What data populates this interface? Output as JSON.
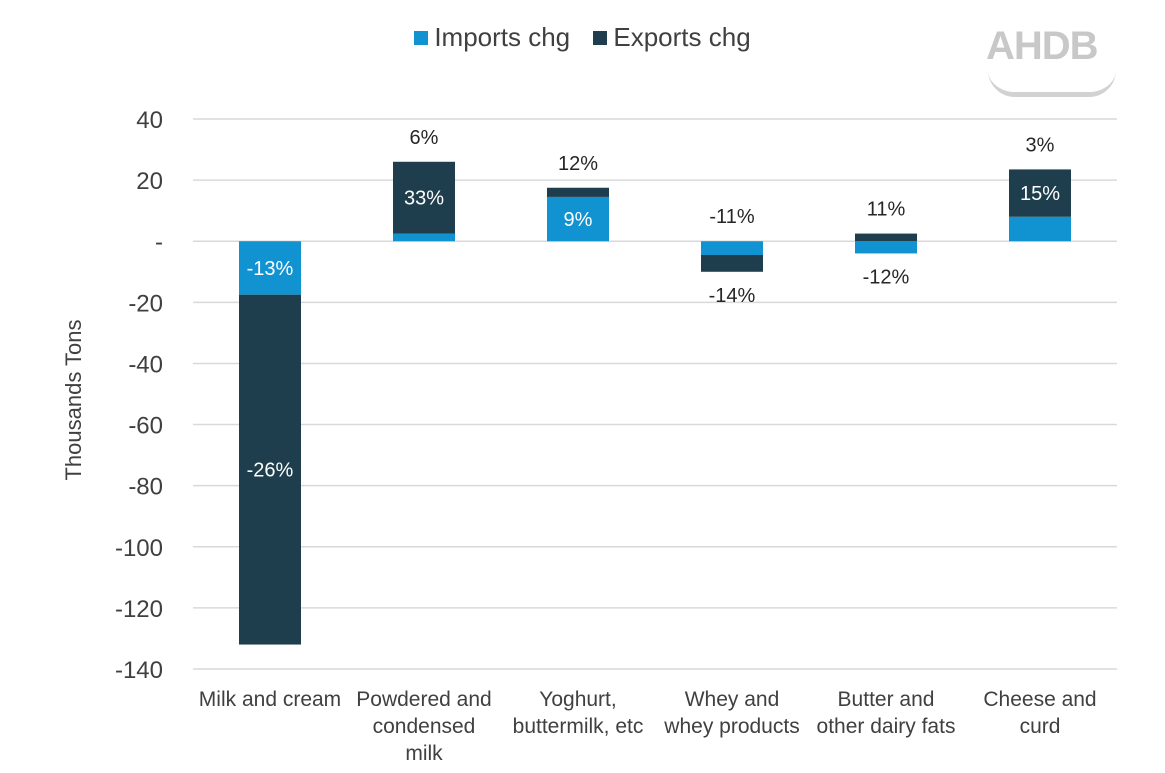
{
  "legend": {
    "imports_label": "Imports chg",
    "exports_label": "Exports chg"
  },
  "logo": {
    "text": "AHDB"
  },
  "colors": {
    "imports": "#1193d1",
    "exports": "#1f3e4d",
    "grid": "#d9d9d9",
    "text": "#404040"
  },
  "chart_data": {
    "type": "bar",
    "stacked": true,
    "ylabel": "Thousands Tons",
    "ylim": [
      -140,
      40
    ],
    "yticks": [
      40,
      20,
      0,
      -20,
      -40,
      -60,
      -80,
      -100,
      -120,
      -140
    ],
    "ytick_labels": [
      "40",
      "20",
      "-",
      "-20",
      "-40",
      "-60",
      "-80",
      "-100",
      "-120",
      "-140"
    ],
    "grid": true,
    "legend_position": "top",
    "categories": [
      [
        "Milk and cream"
      ],
      [
        "Powdered and",
        "condensed",
        "milk"
      ],
      [
        "Yoghurt,",
        "buttermilk, etc"
      ],
      [
        "Whey and",
        "whey products"
      ],
      [
        "Butter and",
        "other dairy fats"
      ],
      [
        "Cheese and",
        "curd"
      ]
    ],
    "series": [
      {
        "name": "Imports chg",
        "values": [
          -17.5,
          2.5,
          14.5,
          -4.5,
          -4,
          8
        ],
        "labels": [
          "-13%",
          "6%",
          "9%",
          "-11%",
          "-12%",
          "3%"
        ]
      },
      {
        "name": "Exports chg",
        "values": [
          -114.5,
          23.5,
          3,
          -5.5,
          2.5,
          15.5
        ],
        "labels": [
          "-26%",
          "33%",
          "12%",
          "-14%",
          "11%",
          "15%"
        ]
      }
    ]
  }
}
